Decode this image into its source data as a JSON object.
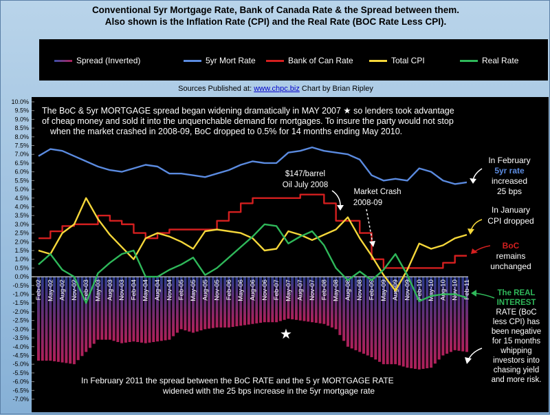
{
  "header": {
    "title_line1": "Conventional 5yr Mortgage Rate, Bank of Canada Rate & the Spread between them.",
    "title_line2": "Also shown is the Inflation Rate (CPI) and the Real Rate (BOC Rate Less CPI)."
  },
  "sources": {
    "prefix": "Sources Published at:",
    "link": "www.chpc.biz",
    "suffix": "Chart by Brian Ripley"
  },
  "colors": {
    "spread": "#b0205a",
    "mortgage": "#5b8be0",
    "boc": "#d41f1f",
    "cpi": "#f5d73a",
    "real": "#2fb85a",
    "plot_bg": "#000000"
  },
  "chart_data": {
    "type": "line",
    "title": "Conventional 5yr Mortgage Rate, Bank of Canada Rate & the Spread between them.",
    "subtitle": "Also shown is the Inflation Rate (CPI) and the Real Rate (BOC Rate Less CPI).",
    "ylim": [
      -7.0,
      10.0
    ],
    "y_ticks": [
      "10.0%",
      "9.5%",
      "9.0%",
      "8.5%",
      "8.0%",
      "7.5%",
      "7.0%",
      "6.5%",
      "6.0%",
      "5.5%",
      "5.0%",
      "4.5%",
      "4.0%",
      "3.5%",
      "3.0%",
      "2.5%",
      "2.0%",
      "1.5%",
      "1.0%",
      "0.5%",
      "0.0%",
      "-0.5%",
      "-1.0%",
      "-1.5%",
      "-2.0%",
      "-2.5%",
      "-3.0%",
      "-3.5%",
      "-4.0%",
      "-4.5%",
      "-5.0%",
      "-5.5%",
      "-6.0%",
      "-6.5%",
      "-7.0%"
    ],
    "x_ticks": [
      "Feb-02",
      "May-02",
      "Aug-02",
      "Nov-02",
      "Feb-03",
      "May-03",
      "Aug-03",
      "Nov-03",
      "Feb-04",
      "May-04",
      "Aug-04",
      "Nov-04",
      "Feb-05",
      "May-05",
      "Aug-05",
      "Nov-05",
      "Feb-06",
      "May-06",
      "Aug-06",
      "Nov-06",
      "Feb-07",
      "May-07",
      "Aug-07",
      "Nov-07",
      "Feb-08",
      "May-08",
      "Aug-08",
      "Nov-08",
      "Feb-09",
      "May-09",
      "Aug-09",
      "Nov-09",
      "Feb-10",
      "May-10",
      "Aug-10",
      "Nov-10",
      "Feb-11"
    ],
    "series": [
      {
        "name": "Spread (Inverted)",
        "values": [
          -4.8,
          -4.8,
          -4.9,
          -5.0,
          -4.3,
          -3.6,
          -3.6,
          -3.8,
          -3.7,
          -3.8,
          -3.7,
          -3.6,
          -3.0,
          -3.2,
          -3.0,
          -2.9,
          -2.9,
          -2.8,
          -2.7,
          -2.6,
          -2.6,
          -2.4,
          -2.5,
          -2.6,
          -2.7,
          -3.0,
          -4.0,
          -4.3,
          -4.6,
          -5.0,
          -5.0,
          -5.2,
          -5.3,
          -5.2,
          -4.5,
          -4.2,
          -4.3
        ]
      },
      {
        "name": "5yr Mort Rate",
        "values": [
          6.9,
          7.3,
          7.2,
          6.9,
          6.6,
          6.3,
          6.1,
          6.0,
          6.2,
          6.4,
          6.3,
          5.9,
          5.9,
          5.8,
          5.7,
          5.9,
          6.1,
          6.4,
          6.6,
          6.5,
          6.5,
          7.1,
          7.2,
          7.4,
          7.2,
          7.1,
          7.0,
          6.7,
          5.8,
          5.5,
          5.6,
          5.5,
          6.2,
          6.0,
          5.5,
          5.3,
          5.4
        ]
      },
      {
        "name": "Bank of Can Rate",
        "values": [
          2.2,
          2.6,
          2.9,
          3.0,
          3.0,
          3.5,
          3.2,
          3.0,
          2.5,
          2.2,
          2.5,
          2.7,
          2.7,
          2.7,
          2.7,
          3.2,
          3.7,
          4.2,
          4.5,
          4.5,
          4.5,
          4.5,
          4.7,
          4.7,
          4.2,
          3.2,
          3.2,
          2.5,
          1.0,
          0.5,
          0.5,
          0.5,
          0.5,
          0.5,
          0.8,
          1.2,
          1.2
        ]
      },
      {
        "name": "Total CPI",
        "values": [
          1.5,
          1.3,
          2.5,
          3.0,
          4.5,
          3.3,
          2.4,
          1.7,
          1.0,
          2.2,
          2.5,
          2.3,
          2.0,
          1.6,
          2.6,
          2.7,
          2.6,
          2.5,
          2.2,
          1.5,
          1.6,
          2.6,
          2.4,
          2.1,
          2.4,
          2.7,
          3.4,
          2.2,
          1.2,
          0.1,
          -0.8,
          0.4,
          1.9,
          1.6,
          1.8,
          2.2,
          2.4
        ]
      },
      {
        "name": "Real Rate",
        "values": [
          0.7,
          1.3,
          0.4,
          0.0,
          -1.5,
          0.2,
          0.8,
          1.3,
          1.5,
          0.0,
          0.0,
          0.4,
          0.7,
          1.1,
          0.1,
          0.5,
          1.1,
          1.7,
          2.3,
          3.0,
          2.9,
          1.9,
          2.3,
          2.6,
          1.8,
          0.5,
          -0.2,
          0.3,
          -0.2,
          0.4,
          1.3,
          0.1,
          -1.4,
          -1.1,
          -1.0,
          -1.0,
          -1.2
        ]
      }
    ],
    "annotations": {
      "top_text": [
        "The BoC & 5yr MORTGAGE spread began widening dramatically in MAY 2007 ★ so lenders took advantage",
        "of cheap money and sold it into the unquenchable demand for mortgages. To insure the party would not stop",
        "when the market crashed in 2008-09, BoC dropped to 0.5% for 14 months ending May 2010."
      ],
      "oil": [
        "$147/barrel",
        "Oil July 2008"
      ],
      "crash": [
        "Market Crash",
        "2008-09"
      ],
      "bottom_text": [
        "In February 2011 the spread between the BoC RATE and the 5 yr MORTGAGE RATE",
        "widened with the 25 bps increase in the 5yr mortgage rate"
      ],
      "right_mort": [
        "In February",
        "5yr rate",
        "increased",
        "25 bps"
      ],
      "right_cpi": [
        "In January",
        "CPI dropped"
      ],
      "right_boc": [
        "BoC",
        "remains",
        "unchanged"
      ],
      "right_real": [
        "The REAL",
        "INTEREST",
        "RATE (BoC",
        "less CPI) has",
        "been negative",
        "for 15 months",
        "whipping",
        "investors into",
        "chasing yield",
        "and more risk."
      ]
    }
  }
}
